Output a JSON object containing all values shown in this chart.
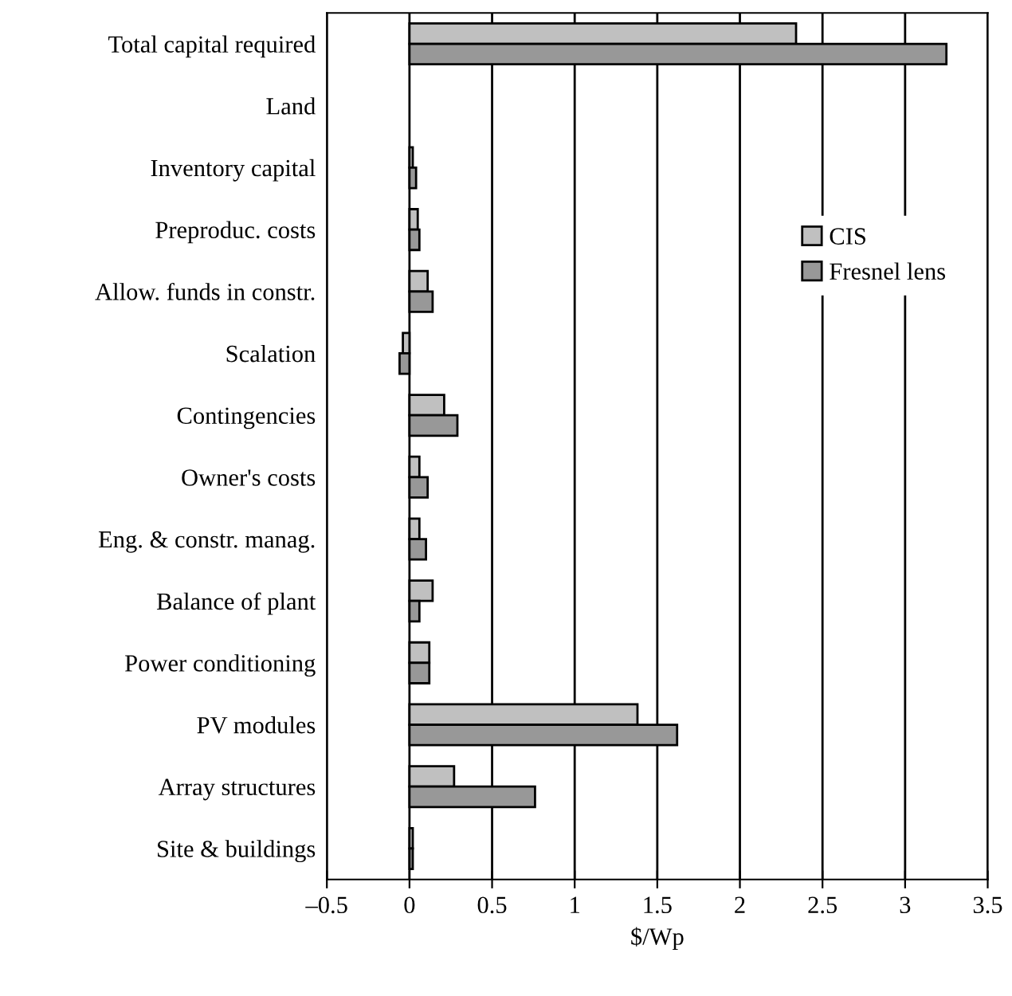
{
  "chart_data": {
    "type": "bar",
    "orientation": "horizontal",
    "xlabel": "$/Wp",
    "categories": [
      "Total capital required",
      "Land",
      "Inventory capital",
      "Preproduc. costs",
      "Allow. funds in constr.",
      "Scalation",
      "Contingencies",
      "Owner's costs",
      "Eng. & constr. manag.",
      "Balance of plant",
      "Power conditioning",
      "PV modules",
      "Array structures",
      "Site & buildings"
    ],
    "series": [
      {
        "name": "CIS",
        "color": "#c0c0c0",
        "values": [
          2.34,
          0,
          0.02,
          0.05,
          0.11,
          -0.04,
          0.21,
          0.06,
          0.06,
          0.14,
          0.12,
          1.38,
          0.27,
          0.02
        ]
      },
      {
        "name": "Fresnel lens",
        "color": "#989898",
        "values": [
          3.25,
          0,
          0.04,
          0.06,
          0.14,
          -0.06,
          0.29,
          0.11,
          0.1,
          0.06,
          0.12,
          1.62,
          0.76,
          0.02
        ]
      }
    ],
    "xlim": [
      -0.5,
      3.5
    ],
    "xticks": [
      {
        "value": -0.5,
        "label": "–0.5"
      },
      0,
      0.5,
      1,
      1.5,
      2,
      2.5,
      3,
      3.5
    ],
    "grid": "x",
    "legend": "right"
  }
}
